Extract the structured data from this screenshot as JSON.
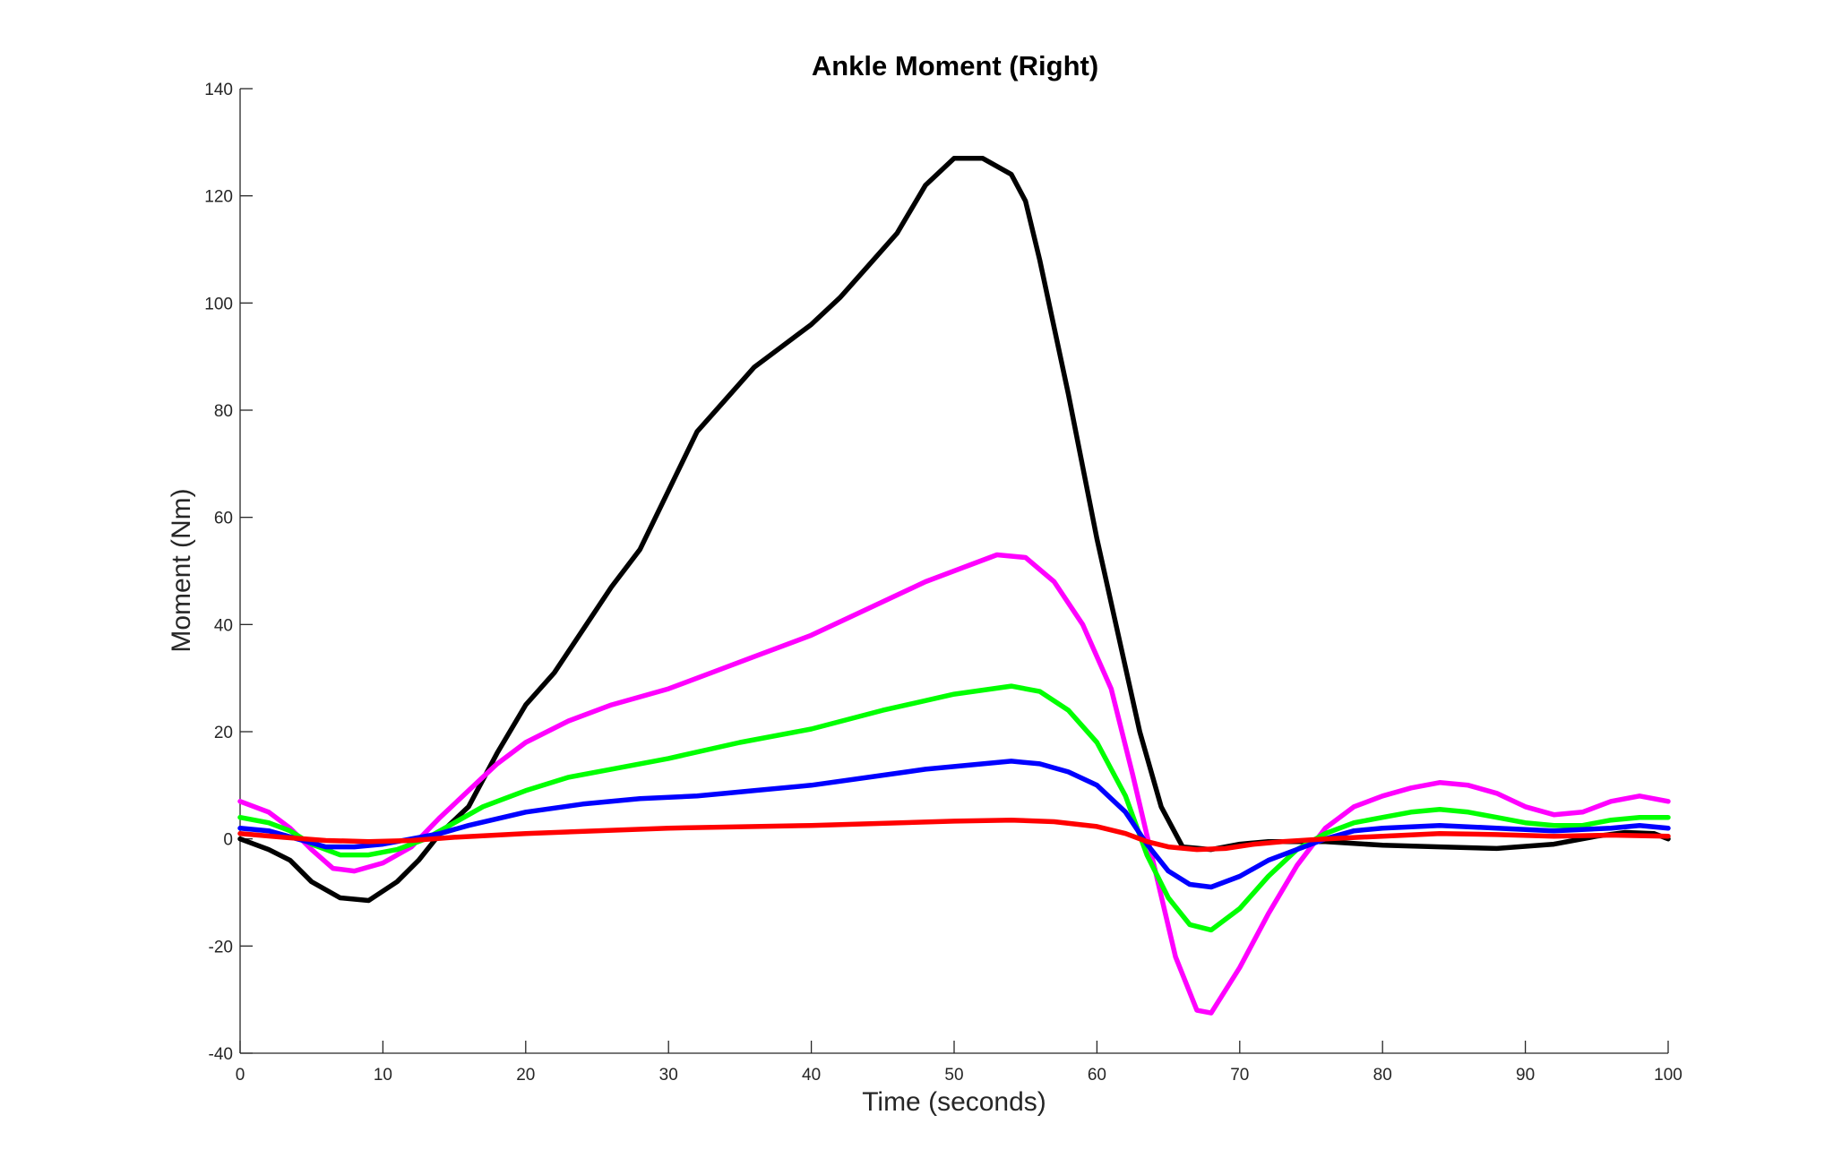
{
  "chart_data": {
    "type": "line",
    "title": "Ankle Moment (Right)",
    "xlabel": "Time (seconds)",
    "ylabel": "Moment (Nm)",
    "xlim": [
      0,
      100
    ],
    "ylim": [
      -40,
      140
    ],
    "xticks": [
      0,
      10,
      20,
      30,
      40,
      50,
      60,
      70,
      80,
      90,
      100
    ],
    "yticks": [
      -40,
      -20,
      0,
      20,
      40,
      60,
      80,
      100,
      120,
      140
    ],
    "grid": false,
    "legend": "none",
    "series": [
      {
        "color": "#000000",
        "points": [
          [
            0,
            0
          ],
          [
            2,
            -2
          ],
          [
            3.5,
            -4
          ],
          [
            5,
            -8
          ],
          [
            7,
            -11
          ],
          [
            9,
            -11.5
          ],
          [
            11,
            -8
          ],
          [
            12.5,
            -4
          ],
          [
            14,
            1
          ],
          [
            16,
            6
          ],
          [
            18,
            16
          ],
          [
            20,
            25
          ],
          [
            22,
            31
          ],
          [
            24,
            39
          ],
          [
            26,
            47
          ],
          [
            28,
            54
          ],
          [
            30,
            65
          ],
          [
            32,
            76
          ],
          [
            34,
            82
          ],
          [
            36,
            88
          ],
          [
            38,
            92
          ],
          [
            40,
            96
          ],
          [
            42,
            101
          ],
          [
            44,
            107
          ],
          [
            46,
            113
          ],
          [
            48,
            122
          ],
          [
            50,
            127
          ],
          [
            52,
            127
          ],
          [
            54,
            124
          ],
          [
            55,
            119
          ],
          [
            56,
            108
          ],
          [
            58,
            83
          ],
          [
            60,
            56
          ],
          [
            61.5,
            38
          ],
          [
            63,
            20
          ],
          [
            64.5,
            6
          ],
          [
            66,
            -1.5
          ],
          [
            68,
            -2
          ],
          [
            70,
            -1
          ],
          [
            72,
            -0.5
          ],
          [
            74,
            -0.5
          ],
          [
            76,
            -0.5
          ],
          [
            80,
            -1.2
          ],
          [
            84,
            -1.5
          ],
          [
            88,
            -1.8
          ],
          [
            92,
            -1
          ],
          [
            95,
            0.5
          ],
          [
            97,
            1.2
          ],
          [
            99,
            1
          ],
          [
            100,
            0
          ]
        ]
      },
      {
        "color": "#ff00ff",
        "points": [
          [
            0,
            7
          ],
          [
            2,
            5
          ],
          [
            3.5,
            2
          ],
          [
            5,
            -2
          ],
          [
            6.5,
            -5.5
          ],
          [
            8,
            -6
          ],
          [
            10,
            -4.5
          ],
          [
            12,
            -1.5
          ],
          [
            14,
            4
          ],
          [
            16,
            9
          ],
          [
            18,
            14
          ],
          [
            20,
            18
          ],
          [
            23,
            22
          ],
          [
            26,
            25
          ],
          [
            28,
            26.5
          ],
          [
            30,
            28
          ],
          [
            33,
            31
          ],
          [
            36,
            34
          ],
          [
            40,
            38
          ],
          [
            44,
            43
          ],
          [
            48,
            48
          ],
          [
            51,
            51
          ],
          [
            53,
            53
          ],
          [
            55,
            52.5
          ],
          [
            57,
            48
          ],
          [
            59,
            40
          ],
          [
            61,
            28
          ],
          [
            62.5,
            12
          ],
          [
            64,
            -5
          ],
          [
            65.5,
            -22
          ],
          [
            67,
            -32
          ],
          [
            68,
            -32.5
          ],
          [
            70,
            -24
          ],
          [
            72,
            -14
          ],
          [
            74,
            -5
          ],
          [
            76,
            2
          ],
          [
            78,
            6
          ],
          [
            80,
            8
          ],
          [
            82,
            9.5
          ],
          [
            84,
            10.5
          ],
          [
            86,
            10
          ],
          [
            88,
            8.5
          ],
          [
            90,
            6
          ],
          [
            92,
            4.5
          ],
          [
            94,
            5
          ],
          [
            96,
            7
          ],
          [
            98,
            8
          ],
          [
            100,
            7
          ]
        ]
      },
      {
        "color": "#00ff00",
        "points": [
          [
            0,
            4
          ],
          [
            2,
            3
          ],
          [
            3.5,
            1.5
          ],
          [
            5,
            -1
          ],
          [
            7,
            -3
          ],
          [
            9,
            -3
          ],
          [
            11,
            -2
          ],
          [
            13,
            0
          ],
          [
            15,
            3
          ],
          [
            17,
            6
          ],
          [
            20,
            9
          ],
          [
            23,
            11.5
          ],
          [
            26,
            13
          ],
          [
            30,
            15
          ],
          [
            35,
            18
          ],
          [
            40,
            20.5
          ],
          [
            45,
            24
          ],
          [
            50,
            27
          ],
          [
            54,
            28.5
          ],
          [
            56,
            27.5
          ],
          [
            58,
            24
          ],
          [
            60,
            18
          ],
          [
            62,
            8
          ],
          [
            63.5,
            -3
          ],
          [
            65,
            -11
          ],
          [
            66.5,
            -16
          ],
          [
            68,
            -17
          ],
          [
            70,
            -13
          ],
          [
            72,
            -7
          ],
          [
            74,
            -2
          ],
          [
            76,
            1
          ],
          [
            78,
            3
          ],
          [
            80,
            4
          ],
          [
            82,
            5
          ],
          [
            84,
            5.5
          ],
          [
            86,
            5
          ],
          [
            88,
            4
          ],
          [
            90,
            3
          ],
          [
            92,
            2.5
          ],
          [
            94,
            2.5
          ],
          [
            96,
            3.5
          ],
          [
            98,
            4
          ],
          [
            100,
            4
          ]
        ]
      },
      {
        "color": "#0000ff",
        "points": [
          [
            0,
            2
          ],
          [
            2,
            1.5
          ],
          [
            4,
            0
          ],
          [
            6,
            -1.5
          ],
          [
            8,
            -1.5
          ],
          [
            10,
            -1
          ],
          [
            12,
            0
          ],
          [
            14,
            1
          ],
          [
            16,
            2.5
          ],
          [
            20,
            5
          ],
          [
            24,
            6.5
          ],
          [
            28,
            7.5
          ],
          [
            32,
            8
          ],
          [
            36,
            9
          ],
          [
            40,
            10
          ],
          [
            44,
            11.5
          ],
          [
            48,
            13
          ],
          [
            52,
            14
          ],
          [
            54,
            14.5
          ],
          [
            56,
            14
          ],
          [
            58,
            12.5
          ],
          [
            60,
            10
          ],
          [
            62,
            5
          ],
          [
            63.5,
            -1
          ],
          [
            65,
            -6
          ],
          [
            66.5,
            -8.5
          ],
          [
            68,
            -9
          ],
          [
            70,
            -7
          ],
          [
            72,
            -4
          ],
          [
            74,
            -2
          ],
          [
            76,
            0
          ],
          [
            78,
            1.5
          ],
          [
            80,
            2
          ],
          [
            84,
            2.5
          ],
          [
            88,
            2
          ],
          [
            92,
            1.5
          ],
          [
            96,
            2
          ],
          [
            98,
            2.5
          ],
          [
            100,
            2
          ]
        ]
      },
      {
        "color": "#ff0000",
        "points": [
          [
            0,
            1
          ],
          [
            3,
            0.3
          ],
          [
            6,
            -0.3
          ],
          [
            9,
            -0.5
          ],
          [
            12,
            -0.3
          ],
          [
            15,
            0.3
          ],
          [
            20,
            1
          ],
          [
            30,
            2
          ],
          [
            40,
            2.5
          ],
          [
            50,
            3.3
          ],
          [
            54,
            3.5
          ],
          [
            57,
            3.2
          ],
          [
            60,
            2.3
          ],
          [
            62,
            1
          ],
          [
            63.5,
            -0.5
          ],
          [
            65,
            -1.5
          ],
          [
            67,
            -2
          ],
          [
            69,
            -1.8
          ],
          [
            71,
            -1
          ],
          [
            73,
            -0.5
          ],
          [
            76,
            0
          ],
          [
            80,
            0.5
          ],
          [
            84,
            1
          ],
          [
            88,
            0.8
          ],
          [
            92,
            0.5
          ],
          [
            96,
            0.7
          ],
          [
            100,
            0.5
          ]
        ]
      }
    ]
  }
}
